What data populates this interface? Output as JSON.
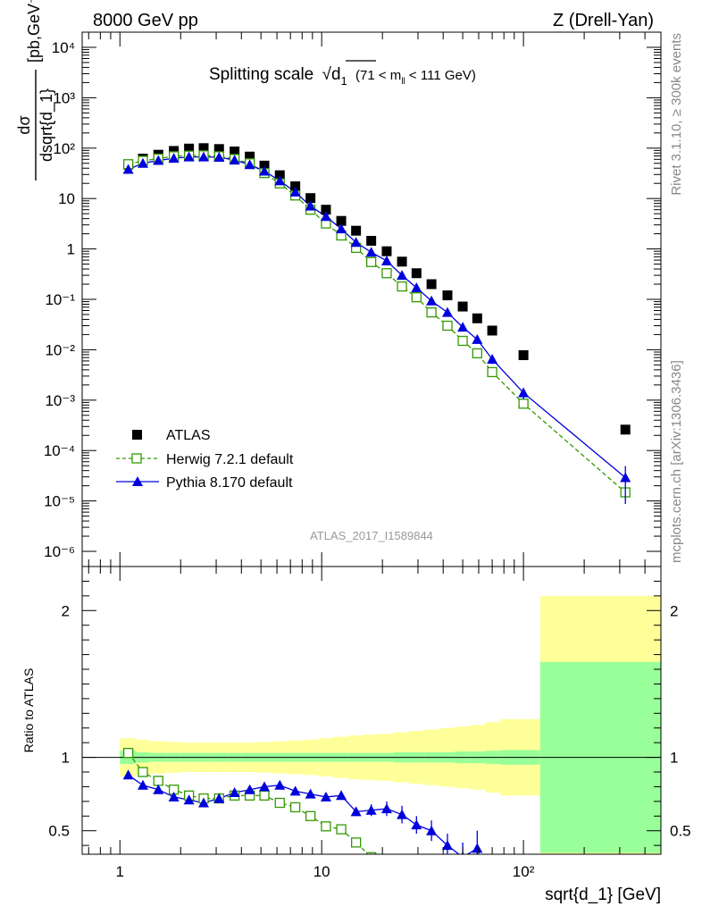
{
  "header": {
    "left": "8000 GeV pp",
    "right": "Z (Drell-Yan)"
  },
  "side_labels": {
    "top": "Rivet 3.1.10, ≥ 300k events",
    "bottom": "mcplots.cern.ch [arXiv:1306.3436]"
  },
  "colors": {
    "atlas": "#000000",
    "herwig": "#339900",
    "pythia": "#0000dd",
    "band_green": "#99ff99",
    "band_yellow": "#ffff99"
  },
  "chart_data": [
    {
      "type": "scatter",
      "panel": "main",
      "title": "Splitting scale",
      "title_symbol": "√d",
      "title_sub": "1",
      "title_range_pre": "(71 < m",
      "title_range_sub": "ll",
      "title_range_post": " < 111 GeV)",
      "watermark": "ATLAS_2017_I1589844",
      "ylabel_num": "dσ",
      "ylabel_den": "dsqrt{d_1}",
      "ylabel_unit": "[pb,GeV⁻¹]",
      "yscale": "log",
      "xscale": "log",
      "xlim": [
        0.65,
        480
      ],
      "ylim": [
        5e-07,
        20000
      ],
      "x_ticks": [
        "1",
        "10",
        "10²"
      ],
      "y_ticks": [
        "10⁻⁶",
        "10⁻⁵",
        "10⁻⁴",
        "10⁻³",
        "10⁻²",
        "10⁻¹",
        "1",
        "10",
        "10²",
        "10³",
        "10⁴"
      ],
      "legend_position": "bottom-left",
      "x": [
        1.1,
        1.3,
        1.55,
        1.85,
        2.2,
        2.6,
        3.1,
        3.7,
        4.4,
        5.2,
        6.2,
        7.4,
        8.8,
        10.5,
        12.5,
        14.8,
        17.6,
        21,
        25,
        29.5,
        35,
        42,
        50,
        59,
        70,
        100,
        320
      ],
      "series": [
        {
          "name": "ATLAS",
          "marker": "square-filled",
          "values": [
            47,
            62,
            74,
            88,
            98,
            100,
            96,
            86,
            68,
            45,
            29,
            17.5,
            10.2,
            6,
            3.6,
            2.3,
            1.45,
            0.9,
            0.56,
            0.33,
            0.2,
            0.12,
            0.072,
            0.042,
            0.024,
            0.0078,
            0.00026
          ]
        },
        {
          "name": "Herwig 7.2.1 default",
          "marker": "square-open",
          "values": [
            48,
            56,
            62,
            69,
            71,
            72,
            69,
            61,
            50,
            32,
            20,
            11.5,
            6,
            3.2,
            1.85,
            1.05,
            0.55,
            0.33,
            0.18,
            0.11,
            0.055,
            0.03,
            0.015,
            0.0085,
            0.0036,
            0.00085,
            1.48e-05
          ]
        },
        {
          "name": "Pythia 8.170 default",
          "marker": "triangle-filled",
          "values": [
            38,
            50,
            57,
            63,
            67,
            67,
            66,
            58,
            47,
            35,
            22.5,
            13.5,
            7.1,
            4.4,
            2.5,
            1.35,
            0.86,
            0.58,
            0.3,
            0.17,
            0.093,
            0.055,
            0.028,
            0.016,
            0.0065,
            0.0014,
            2.9e-05
          ],
          "errors_rel": [
            0.03,
            0.03,
            0.03,
            0.03,
            0.03,
            0.03,
            0.03,
            0.03,
            0.03,
            0.03,
            0.03,
            0.03,
            0.03,
            0.04,
            0.04,
            0.05,
            0.05,
            0.06,
            0.07,
            0.09,
            0.1,
            0.12,
            0.14,
            0.16,
            0.2,
            0.25,
            0.7
          ]
        }
      ]
    },
    {
      "type": "line",
      "panel": "ratio",
      "ylabel": "Ratio to ATLAS",
      "xlabel": "sqrt{d_1} [GeV]",
      "yscale": "linear",
      "xscale": "log",
      "xlim": [
        0.65,
        480
      ],
      "ylim": [
        0.34,
        2.3
      ],
      "y_ticks": [
        "0.5",
        "1",
        "2"
      ],
      "x_ticks": [
        "1",
        "10",
        "10²"
      ],
      "bands": {
        "bin_edges": [
          1,
          1.2,
          1.4,
          1.7,
          2,
          2.4,
          2.8,
          3.4,
          4,
          4.8,
          5.7,
          6.8,
          8.1,
          9.6,
          11.4,
          13.6,
          16.1,
          19.2,
          22.8,
          27.1,
          32.3,
          38.4,
          45.6,
          54.3,
          64.5,
          76.7,
          121,
          480
        ],
        "green": [
          0.045,
          0.035,
          0.03,
          0.03,
          0.03,
          0.03,
          0.03,
          0.03,
          0.03,
          0.03,
          0.03,
          0.03,
          0.03,
          0.03,
          0.03,
          0.03,
          0.03,
          0.03,
          0.035,
          0.035,
          0.035,
          0.035,
          0.04,
          0.04,
          0.045,
          0.05,
          0.65
        ],
        "yellow": [
          0.13,
          0.12,
          0.11,
          0.105,
          0.1,
          0.1,
          0.1,
          0.1,
          0.1,
          0.105,
          0.11,
          0.115,
          0.12,
          0.13,
          0.14,
          0.15,
          0.155,
          0.16,
          0.17,
          0.18,
          0.19,
          0.2,
          0.21,
          0.22,
          0.24,
          0.26,
          1.1
        ]
      },
      "x": [
        1.1,
        1.3,
        1.55,
        1.85,
        2.2,
        2.6,
        3.1,
        3.7,
        4.4,
        5.2,
        6.2,
        7.4,
        8.8,
        10.5,
        12.5,
        14.8,
        17.6,
        21,
        25,
        29.5,
        35,
        42,
        50,
        59
      ],
      "series": [
        {
          "name": "Herwig 7.2.1 default",
          "values": [
            1.03,
            0.9,
            0.84,
            0.78,
            0.74,
            0.72,
            0.72,
            0.74,
            0.74,
            0.74,
            0.69,
            0.66,
            0.6,
            0.53,
            0.51,
            0.42,
            0.32,
            null,
            null,
            null,
            null,
            null,
            null,
            null
          ]
        },
        {
          "name": "Pythia 8.170 default",
          "values": [
            0.88,
            0.81,
            0.78,
            0.73,
            0.71,
            0.69,
            0.72,
            0.76,
            0.78,
            0.8,
            0.81,
            0.77,
            0.75,
            0.73,
            0.74,
            0.63,
            0.64,
            0.65,
            0.61,
            0.54,
            0.5,
            0.4,
            0.32,
            0.38
          ],
          "errors": [
            0.02,
            0.02,
            0.02,
            0.02,
            0.02,
            0.02,
            0.02,
            0.02,
            0.02,
            0.02,
            0.02,
            0.02,
            0.02,
            0.02,
            0.03,
            0.03,
            0.04,
            0.05,
            0.06,
            0.06,
            0.07,
            0.08,
            0.1,
            0.12
          ]
        }
      ]
    }
  ]
}
